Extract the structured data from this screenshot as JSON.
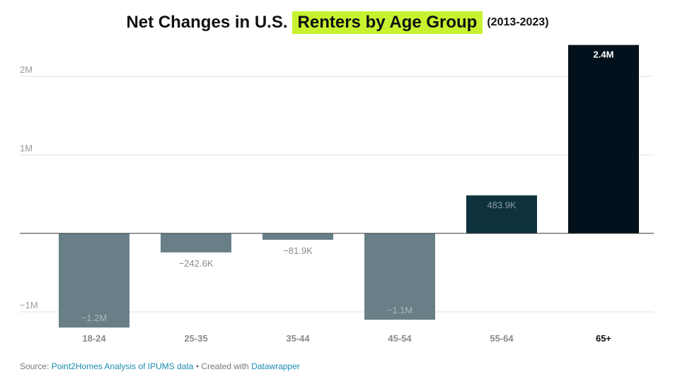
{
  "title": {
    "prefix": "Net Changes in U.S.",
    "highlight": "Renters by Age Group",
    "years": "(2013-2023)"
  },
  "chart_data": {
    "type": "bar",
    "categories": [
      "18-24",
      "25-35",
      "35-44",
      "45-54",
      "55-64",
      "65+"
    ],
    "values": [
      -1200000,
      -242600,
      -81900,
      -1100000,
      483900,
      2400000
    ],
    "data_labels": [
      "−1.2M",
      "−242.6K",
      "−81.9K",
      "−1.1M",
      "483.9K",
      "2.4M"
    ],
    "bar_colors": [
      "#687f87",
      "#687f87",
      "#687f87",
      "#687f87",
      "#0d323e",
      "#02111b"
    ],
    "highlighted_category": "65+",
    "y_ticks": [
      {
        "value": 2000000,
        "label": "2M"
      },
      {
        "value": 1000000,
        "label": "1M"
      },
      {
        "value": -1000000,
        "label": "−1M"
      }
    ],
    "ylim": [
      -1200000,
      2400000
    ],
    "grid": true
  },
  "footer": {
    "source_label": "Source:",
    "source_link": "Point2Homes Analysis of IPUMS data",
    "separator": "• Created with",
    "tool_link": "Datawrapper"
  },
  "colors": {
    "highlight": "#c6f230",
    "link": "#1b8bb0",
    "neutral_bar": "#687f87"
  }
}
